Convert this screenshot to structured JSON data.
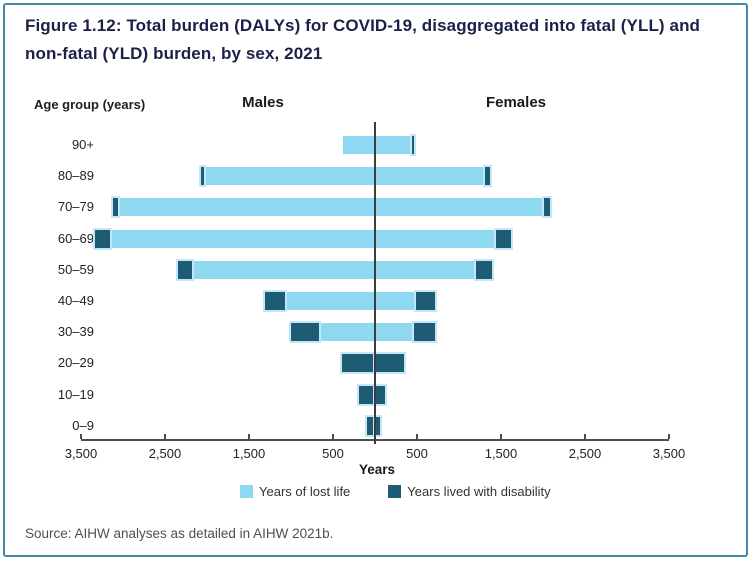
{
  "figure": {
    "title": "Figure 1.12: Total burden (DALYs) for COVID-19, disaggregated into fatal (YLL) and non-fatal (YLD) burden, by sex, 2021",
    "source": "Source: AIHW analyses as detailed in AIHW 2021b."
  },
  "chart_data": {
    "type": "bar",
    "variant": "population_pyramid_stacked_horizontal",
    "title": "Total burden (DALYs) for COVID-19, disaggregated into fatal (YLL) and non-fatal (YLD) burden, by sex, 2021",
    "y_axis_title": "Age group (years)",
    "left_header": "Males",
    "right_header": "Females",
    "axis_label": "Years",
    "categories": [
      "90+",
      "80–89",
      "70–79",
      "60–69",
      "50–59",
      "40–49",
      "30–39",
      "20–29",
      "10–19",
      "0–9"
    ],
    "xlim_each_side": 3500,
    "x_ticks": [
      {
        "value": -3500,
        "label": "3,500"
      },
      {
        "value": -2500,
        "label": "2,500"
      },
      {
        "value": -1500,
        "label": "1,500"
      },
      {
        "value": -500,
        "label": "500"
      },
      {
        "value": 500,
        "label": "500"
      },
      {
        "value": 1500,
        "label": "1,500"
      },
      {
        "value": 2500,
        "label": "2,500"
      },
      {
        "value": 3500,
        "label": "3,500"
      }
    ],
    "series": [
      {
        "name": "Years of lost life",
        "abbr": "YLL",
        "color": "#8ed8f1",
        "males": [
          380,
          2040,
          3060,
          3150,
          2180,
          1070,
          670,
          0,
          0,
          0
        ],
        "females": [
          440,
          1310,
          2010,
          1440,
          1200,
          490,
          470,
          0,
          0,
          0
        ]
      },
      {
        "name": "Years lived with disability",
        "abbr": "YLD",
        "color": "#1d5c74",
        "males": [
          0,
          30,
          55,
          180,
          165,
          240,
          330,
          390,
          190,
          95
        ],
        "females": [
          25,
          60,
          70,
          180,
          190,
          225,
          240,
          345,
          120,
          65
        ]
      }
    ],
    "legend_position": "bottom",
    "grid": false,
    "colors": {
      "yll": "#8ed8f1",
      "yld": "#1d5c74",
      "frame_border": "#4389ac",
      "title_text": "#1c2148",
      "axis": "#4d4d4d"
    }
  }
}
